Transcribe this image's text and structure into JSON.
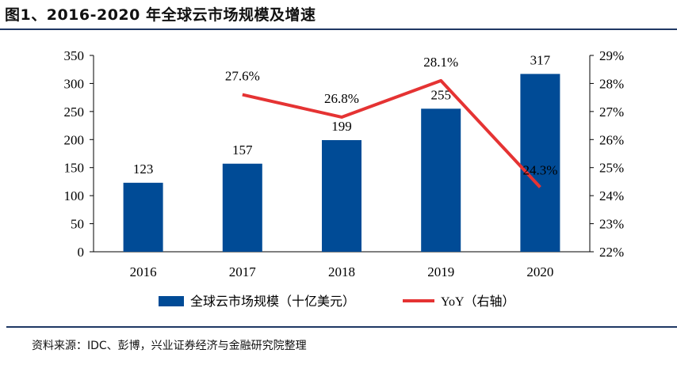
{
  "header": {
    "figure_title": "图1、2016-2020 年全球云市场规模及增速",
    "source_note": "资料来源：IDC、彭博，兴业证券经济与金融研究院整理"
  },
  "chart_data": {
    "type": "bar",
    "title": "",
    "categories": [
      "2016",
      "2017",
      "2018",
      "2019",
      "2020"
    ],
    "series": [
      {
        "name": "全球云市场规模（十亿美元）",
        "type": "bar",
        "axis": "left",
        "color": "#004b96",
        "values": [
          123,
          157,
          199,
          255,
          317
        ],
        "labels": [
          "123",
          "157",
          "199",
          "255",
          "317"
        ]
      },
      {
        "name": "YoY（右轴）",
        "type": "line",
        "axis": "right",
        "color": "#e53333",
        "values": [
          null,
          27.6,
          26.8,
          28.1,
          24.3
        ],
        "labels": [
          "",
          "27.6%",
          "26.8%",
          "28.1%",
          "24.3%"
        ]
      }
    ],
    "left_axis": {
      "min": 0,
      "max": 350,
      "ticks": [
        "0",
        "50",
        "100",
        "150",
        "200",
        "250",
        "300",
        "350"
      ]
    },
    "right_axis": {
      "min": 22,
      "max": 29,
      "ticks": [
        "22%",
        "23%",
        "24%",
        "25%",
        "26%",
        "27%",
        "28%",
        "29%"
      ]
    },
    "grid": false,
    "legend_position": "bottom"
  }
}
